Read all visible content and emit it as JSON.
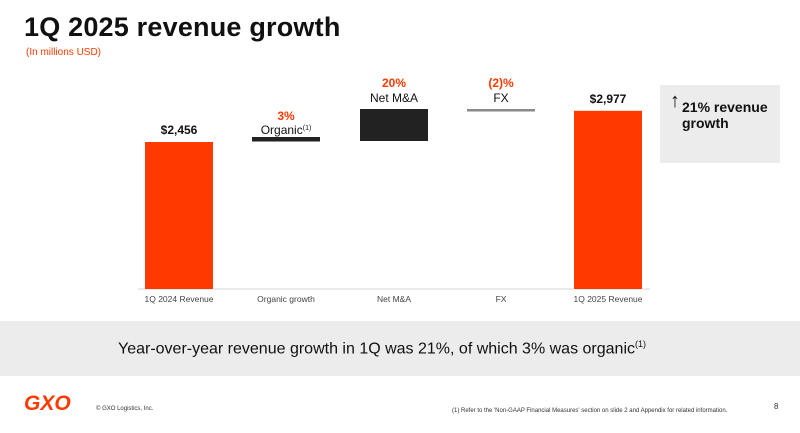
{
  "header": {
    "title": "1Q 2025 revenue growth",
    "subtitle": "(In millions USD)"
  },
  "chart_data": {
    "type": "bar",
    "subtype": "waterfall",
    "categories": [
      "1Q 2024 Revenue",
      "Organic growth",
      "Net M&A",
      "FX",
      "1Q 2025 Revenue"
    ],
    "steps": [
      {
        "category": "1Q 2024 Revenue",
        "kind": "total",
        "value": 2456,
        "label": "$2,456"
      },
      {
        "category": "Organic growth",
        "kind": "delta",
        "pct_label": "3%",
        "name": "Organic",
        "sup": "(1)"
      },
      {
        "category": "Net M&A",
        "kind": "delta",
        "pct_label": "20%",
        "name": "Net M&A",
        "sup": ""
      },
      {
        "category": "FX",
        "kind": "delta",
        "pct_label": "(2)%",
        "name": "FX",
        "sup": ""
      },
      {
        "category": "1Q 2025 Revenue",
        "kind": "total",
        "value": 2977,
        "label": "$2,977"
      }
    ],
    "ylim": [
      0,
      3200
    ],
    "colors": {
      "total": "#ff3a00",
      "organic": "#222222",
      "mna": "#222222",
      "fx": "#8a8a8a",
      "label_red": "#ff3a00"
    }
  },
  "callout": {
    "arrow": "↑",
    "text": "21% revenue growth"
  },
  "banner": {
    "text": "Year-over-year revenue growth in 1Q was 21%, of which 3% was organic",
    "sup": "(1)"
  },
  "footer": {
    "logo": "GXO",
    "copyright": "© GXO Logistics, Inc.",
    "footnote": "(1) Refer to the 'Non-GAAP Financial Measures' section on slide 2 and Appendix for related information.",
    "page": "8"
  }
}
